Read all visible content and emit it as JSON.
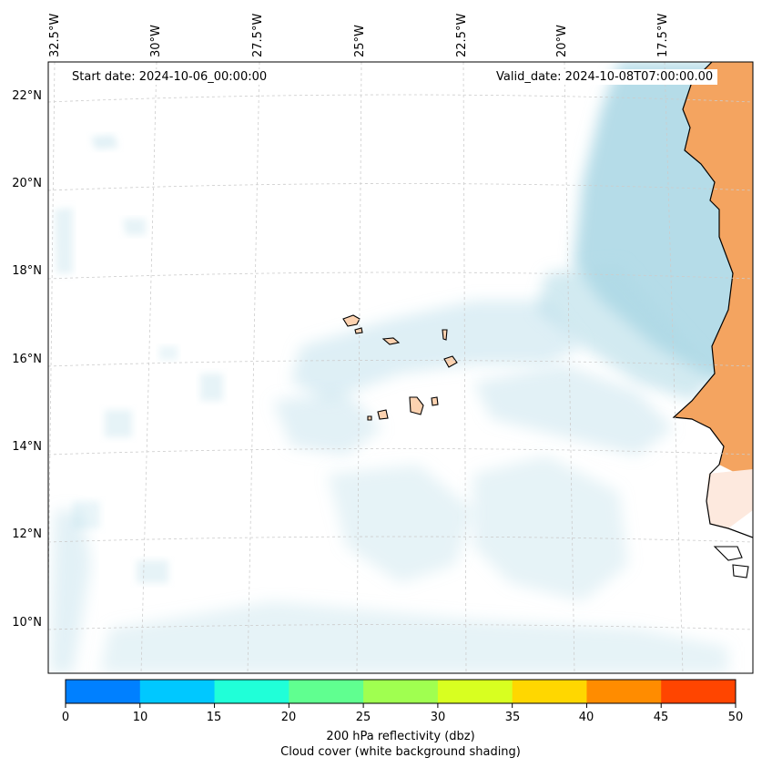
{
  "map": {
    "start_date_text": "Start date: 2024-10-06_00:00:00",
    "valid_date_text": "Valid_date: 2024-10-08T07:00:00.00",
    "lon_ticks": [
      "32.5°W",
      "30°W",
      "27.5°W",
      "25°W",
      "22.5°W",
      "20°W",
      "17.5°W"
    ],
    "lat_ticks": [
      "22°N",
      "20°N",
      "18°N",
      "16°N",
      "14°N",
      "12°N",
      "10°N"
    ],
    "extent": {
      "lon_min": -33.0,
      "lon_max": -15.5,
      "lat_min": 9.0,
      "lat_max": 22.8
    },
    "colors": {
      "land": "#f4a460",
      "cloud": "#add8e6",
      "coast": "#000000",
      "grid": "#cccccc"
    }
  },
  "colorbar": {
    "ticks": [
      "0",
      "10",
      "15",
      "20",
      "25",
      "30",
      "35",
      "40",
      "45",
      "50"
    ],
    "colors": [
      "#0080ff",
      "#00c8ff",
      "#20ffd8",
      "#60ff90",
      "#a0ff50",
      "#d8ff20",
      "#ffd700",
      "#ff8c00",
      "#ff4500"
    ],
    "label_line1": "200 hPa reflectivity (dbz)",
    "label_line2": "Cloud cover (white background shading)"
  }
}
